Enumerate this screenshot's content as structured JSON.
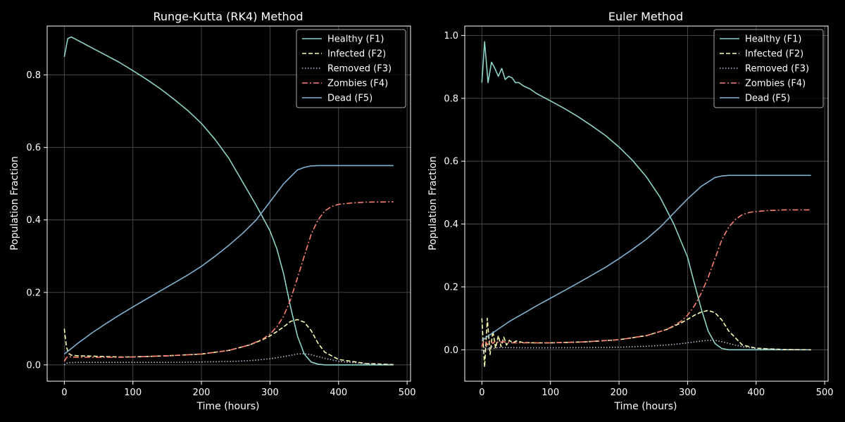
{
  "figure": {
    "background": "#000000"
  },
  "colors": {
    "F1": "#8dd3c7",
    "F2": "#feffb3",
    "F3": "#bfbbd9",
    "F4": "#fa8174",
    "F5": "#81b1d2",
    "grid": "#555555",
    "axes": "#ffffff"
  },
  "chart_data": [
    {
      "type": "line",
      "title": "Runge-Kutta (RK4) Method",
      "xlabel": "Time (hours)",
      "ylabel": "Population Fraction",
      "xlim": [
        -25,
        505
      ],
      "ylim": [
        -0.045,
        0.935
      ],
      "xticks": [
        0,
        100,
        200,
        300,
        400,
        500
      ],
      "yticks": [
        0.0,
        0.2,
        0.4,
        0.6,
        0.8
      ],
      "ytick_labels": [
        "0.0",
        "0.2",
        "0.4",
        "0.6",
        "0.8"
      ],
      "grid": true,
      "legend_position": "top-right",
      "series": [
        {
          "key": "F1",
          "name": "Healthy (F1)",
          "style": "solid",
          "x": [
            0,
            5,
            10,
            20,
            40,
            60,
            80,
            100,
            120,
            140,
            160,
            180,
            200,
            220,
            240,
            260,
            280,
            300,
            310,
            320,
            330,
            340,
            350,
            360,
            370,
            380,
            400,
            440,
            480
          ],
          "y": [
            0.85,
            0.9,
            0.905,
            0.895,
            0.875,
            0.855,
            0.835,
            0.812,
            0.788,
            0.762,
            0.733,
            0.702,
            0.666,
            0.622,
            0.57,
            0.505,
            0.44,
            0.37,
            0.32,
            0.25,
            0.16,
            0.08,
            0.03,
            0.008,
            0.002,
            0.0,
            0.0,
            0.0,
            0.0
          ]
        },
        {
          "key": "F2",
          "name": "Infected (F2)",
          "style": "dashed",
          "x": [
            0,
            3,
            6,
            10,
            20,
            40,
            60,
            80,
            100,
            150,
            200,
            240,
            270,
            290,
            300,
            310,
            320,
            330,
            340,
            350,
            360,
            370,
            380,
            400,
            440,
            480
          ],
          "y": [
            0.1,
            0.05,
            0.032,
            0.027,
            0.025,
            0.024,
            0.023,
            0.022,
            0.022,
            0.025,
            0.03,
            0.04,
            0.055,
            0.07,
            0.08,
            0.092,
            0.105,
            0.12,
            0.125,
            0.118,
            0.095,
            0.06,
            0.035,
            0.015,
            0.004,
            0.001
          ]
        },
        {
          "key": "F3",
          "name": "Removed (F3)",
          "style": "dotted",
          "x": [
            0,
            5,
            20,
            60,
            100,
            150,
            200,
            250,
            280,
            300,
            320,
            340,
            350,
            360,
            380,
            400,
            440,
            480
          ],
          "y": [
            0.0,
            0.006,
            0.007,
            0.007,
            0.007,
            0.007,
            0.008,
            0.01,
            0.013,
            0.017,
            0.023,
            0.03,
            0.031,
            0.028,
            0.018,
            0.01,
            0.003,
            0.001
          ]
        },
        {
          "key": "F4",
          "name": "Zombies (F4)",
          "style": "dashdot",
          "x": [
            0,
            3,
            6,
            10,
            20,
            40,
            60,
            80,
            100,
            150,
            200,
            240,
            270,
            290,
            300,
            310,
            320,
            330,
            340,
            350,
            360,
            370,
            380,
            390,
            400,
            420,
            440,
            480
          ],
          "y": [
            0.01,
            0.02,
            0.023,
            0.022,
            0.021,
            0.021,
            0.021,
            0.021,
            0.022,
            0.025,
            0.03,
            0.04,
            0.055,
            0.072,
            0.085,
            0.105,
            0.135,
            0.18,
            0.24,
            0.3,
            0.36,
            0.4,
            0.425,
            0.437,
            0.443,
            0.447,
            0.449,
            0.45
          ]
        },
        {
          "key": "F5",
          "name": "Dead (F5)",
          "style": "solid",
          "x": [
            0,
            10,
            20,
            40,
            60,
            80,
            100,
            120,
            140,
            160,
            180,
            200,
            220,
            240,
            260,
            280,
            300,
            320,
            340,
            350,
            360,
            370,
            380,
            400,
            440,
            480
          ],
          "y": [
            0.03,
            0.045,
            0.06,
            0.088,
            0.113,
            0.137,
            0.16,
            0.182,
            0.204,
            0.226,
            0.248,
            0.272,
            0.3,
            0.33,
            0.363,
            0.4,
            0.45,
            0.5,
            0.538,
            0.545,
            0.549,
            0.55,
            0.55,
            0.55,
            0.55,
            0.55
          ]
        }
      ]
    },
    {
      "type": "line",
      "title": "Euler Method",
      "xlabel": "Time (hours)",
      "ylabel": "Population Fraction",
      "xlim": [
        -25,
        505
      ],
      "ylim": [
        -0.1,
        1.03
      ],
      "xticks": [
        0,
        100,
        200,
        300,
        400,
        500
      ],
      "yticks": [
        0.0,
        0.2,
        0.4,
        0.6,
        0.8,
        1.0
      ],
      "ytick_labels": [
        "0.0",
        "0.2",
        "0.4",
        "0.6",
        "0.8",
        "1.0"
      ],
      "grid": true,
      "legend_position": "top-right",
      "series": [
        {
          "key": "F1",
          "name": "Healthy (F1)",
          "style": "solid",
          "x": [
            0,
            4,
            9,
            14,
            19,
            24,
            29,
            34,
            39,
            44,
            49,
            54,
            60,
            70,
            80,
            100,
            120,
            140,
            160,
            180,
            200,
            220,
            240,
            260,
            280,
            300,
            310,
            320,
            330,
            340,
            350,
            360,
            380,
            400,
            440,
            480
          ],
          "y": [
            0.85,
            0.98,
            0.85,
            0.915,
            0.895,
            0.87,
            0.895,
            0.86,
            0.87,
            0.865,
            0.85,
            0.85,
            0.84,
            0.83,
            0.815,
            0.792,
            0.768,
            0.742,
            0.713,
            0.682,
            0.645,
            0.602,
            0.55,
            0.485,
            0.4,
            0.295,
            0.21,
            0.13,
            0.06,
            0.02,
            0.004,
            0.0,
            0.0,
            0.0,
            0.0,
            0.0
          ]
        },
        {
          "key": "F2",
          "name": "Infected (F2)",
          "style": "dashed",
          "x": [
            0,
            4,
            8,
            12,
            16,
            20,
            24,
            28,
            32,
            36,
            40,
            45,
            50,
            60,
            80,
            100,
            150,
            200,
            240,
            270,
            290,
            300,
            310,
            320,
            330,
            340,
            350,
            360,
            380,
            400,
            440,
            480
          ],
          "y": [
            0.1,
            -0.055,
            0.1,
            -0.015,
            0.06,
            0.005,
            0.045,
            0.01,
            0.04,
            0.015,
            0.03,
            0.022,
            0.028,
            0.023,
            0.022,
            0.022,
            0.025,
            0.032,
            0.045,
            0.065,
            0.085,
            0.097,
            0.11,
            0.12,
            0.125,
            0.118,
            0.095,
            0.06,
            0.015,
            0.005,
            0.001,
            0.0
          ]
        },
        {
          "key": "F3",
          "name": "Removed (F3)",
          "style": "dotted",
          "x": [
            0,
            3,
            6,
            10,
            14,
            18,
            25,
            40,
            60,
            100,
            150,
            200,
            250,
            280,
            300,
            320,
            330,
            340,
            350,
            360,
            380,
            400,
            440,
            480
          ],
          "y": [
            0.0,
            -0.01,
            0.012,
            0.0,
            0.01,
            0.005,
            0.007,
            0.007,
            0.006,
            0.006,
            0.007,
            0.008,
            0.012,
            0.017,
            0.022,
            0.028,
            0.03,
            0.03,
            0.026,
            0.02,
            0.01,
            0.004,
            0.001,
            0.0
          ]
        },
        {
          "key": "F4",
          "name": "Zombies (F4)",
          "style": "dashdot",
          "x": [
            0,
            4,
            8,
            12,
            16,
            20,
            25,
            30,
            40,
            60,
            80,
            100,
            150,
            200,
            240,
            270,
            290,
            300,
            310,
            320,
            330,
            340,
            350,
            360,
            370,
            380,
            390,
            400,
            420,
            440,
            480
          ],
          "y": [
            0.01,
            0.035,
            0.015,
            0.03,
            0.02,
            0.028,
            0.022,
            0.026,
            0.022,
            0.022,
            0.022,
            0.022,
            0.025,
            0.032,
            0.045,
            0.065,
            0.09,
            0.11,
            0.14,
            0.18,
            0.23,
            0.29,
            0.35,
            0.39,
            0.415,
            0.43,
            0.437,
            0.44,
            0.443,
            0.445,
            0.445
          ]
        },
        {
          "key": "F5",
          "name": "Dead (F5)",
          "style": "solid",
          "x": [
            0,
            10,
            20,
            40,
            60,
            80,
            100,
            120,
            140,
            160,
            180,
            200,
            220,
            240,
            260,
            280,
            300,
            320,
            340,
            350,
            360,
            380,
            400,
            440,
            480
          ],
          "y": [
            0.03,
            0.045,
            0.06,
            0.09,
            0.115,
            0.14,
            0.164,
            0.188,
            0.212,
            0.237,
            0.262,
            0.29,
            0.32,
            0.352,
            0.39,
            0.435,
            0.48,
            0.52,
            0.548,
            0.553,
            0.555,
            0.555,
            0.555,
            0.555,
            0.555
          ]
        }
      ]
    }
  ]
}
